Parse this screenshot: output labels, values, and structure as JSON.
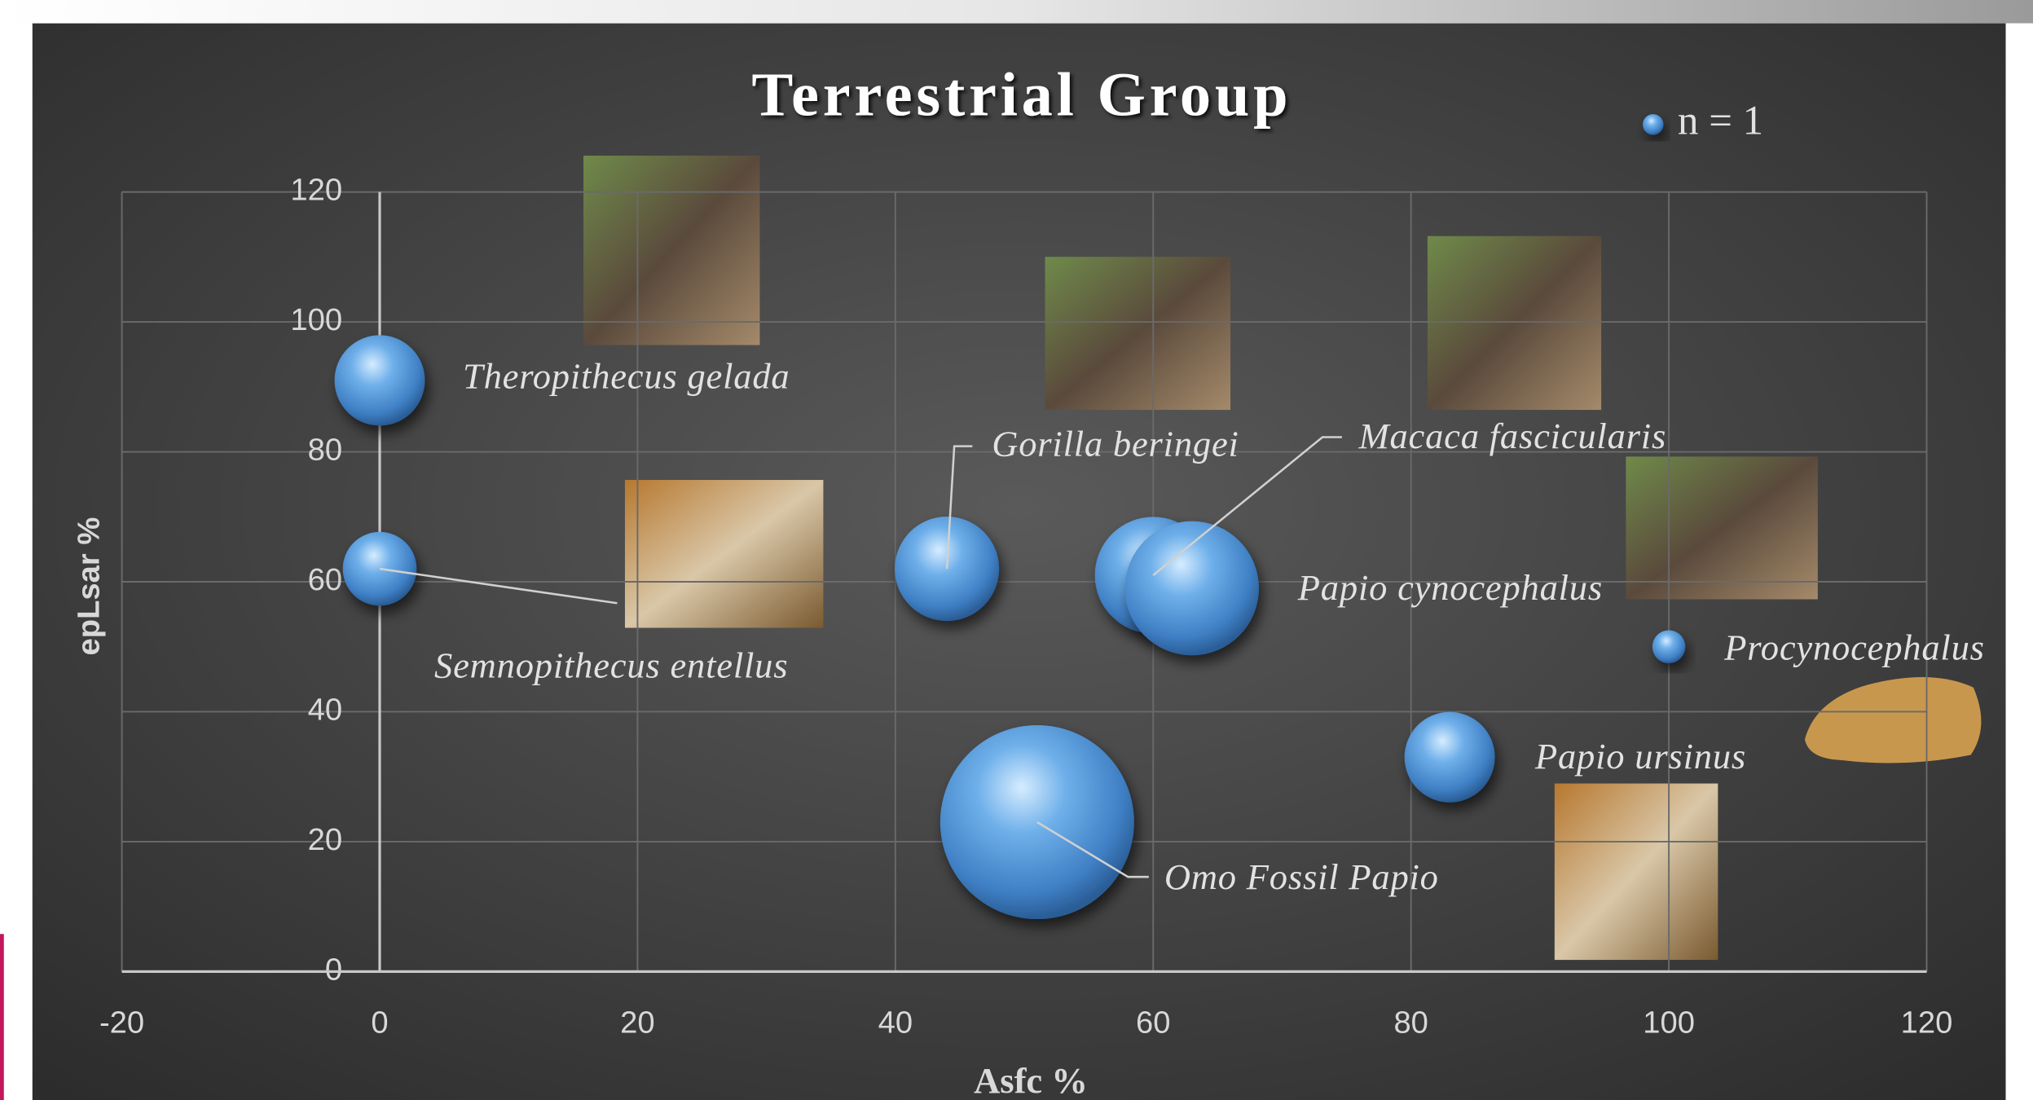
{
  "chart_data": {
    "type": "bubble",
    "title": "Terrestrial Group",
    "xlabel": "Asfc %",
    "ylabel": "epLsar %",
    "xlim": [
      -20,
      120
    ],
    "ylim": [
      0,
      120
    ],
    "xticks": [
      -20,
      0,
      20,
      40,
      60,
      80,
      100,
      120
    ],
    "yticks": [
      0,
      20,
      40,
      60,
      80,
      100,
      120
    ],
    "grid": true,
    "legend": "top-right",
    "series": [
      {
        "name": "n = 1",
        "color": "#5b9bd5",
        "x": [
          0,
          0,
          44,
          60,
          63,
          100,
          83,
          51
        ],
        "y": [
          91,
          62,
          62,
          61,
          59,
          50,
          33,
          23
        ],
        "sizes": [
          15,
          10,
          20,
          25,
          33,
          2,
          15,
          69
        ],
        "labels": [
          "Theropithecus  gelada",
          "Semnopithecus  entellus",
          "Gorilla  beringei",
          "Macaca  fascicularis",
          "Papio  cynocephalus",
          "Procynocephalus",
          "Papio  ursinus",
          "Omo Fossil  Papio"
        ]
      }
    ]
  }
}
